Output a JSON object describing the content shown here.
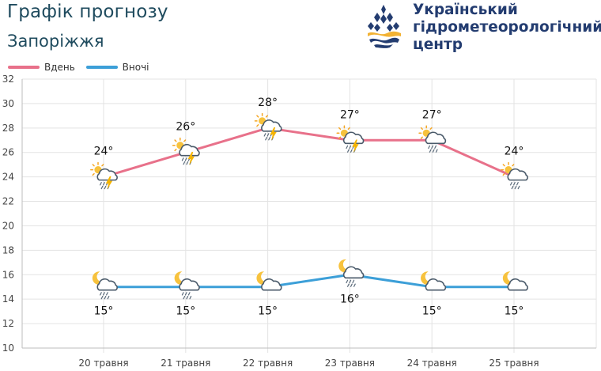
{
  "header": {
    "title": "Графік прогнозу",
    "city": "Запоріжжя",
    "org_line1": "Український",
    "org_line2": "гідрометеорологічний",
    "org_line3": "центр"
  },
  "colors": {
    "day": "#e8718a",
    "night": "#3c9fd8",
    "grid": "#e3e3e3",
    "brand": "#233c70"
  },
  "chart_data": {
    "type": "line",
    "categories": [
      "20 травня",
      "21 травня",
      "22 травня",
      "23 травня",
      "24 травня",
      "25 травня"
    ],
    "ylim": [
      10,
      32
    ],
    "yticks": [
      10,
      12,
      14,
      16,
      18,
      20,
      22,
      24,
      26,
      28,
      30,
      32
    ],
    "grid": true,
    "legend_position": "top-left",
    "series": [
      {
        "name": "Вдень",
        "values": [
          24,
          26,
          28,
          27,
          27,
          24
        ],
        "labels": [
          "24°",
          "26°",
          "28°",
          "27°",
          "27°",
          "24°"
        ],
        "icons": [
          "sun-cloud-rain-thunder-icon",
          "sun-cloud-rain-thunder-icon",
          "sun-cloud-rain-thunder-icon",
          "sun-cloud-rain-thunder-icon",
          "sun-cloud-rain-icon",
          "sun-cloud-rain-icon"
        ]
      },
      {
        "name": "Вночі",
        "values": [
          15,
          15,
          15,
          16,
          15,
          15
        ],
        "labels": [
          "15°",
          "15°",
          "15°",
          "16°",
          "15°",
          "15°"
        ],
        "icons": [
          "moon-cloud-rain-icon",
          "moon-cloud-rain-icon",
          "moon-cloud-icon",
          "moon-cloud-rain-icon",
          "moon-cloud-icon",
          "moon-cloud-icon"
        ]
      }
    ]
  }
}
